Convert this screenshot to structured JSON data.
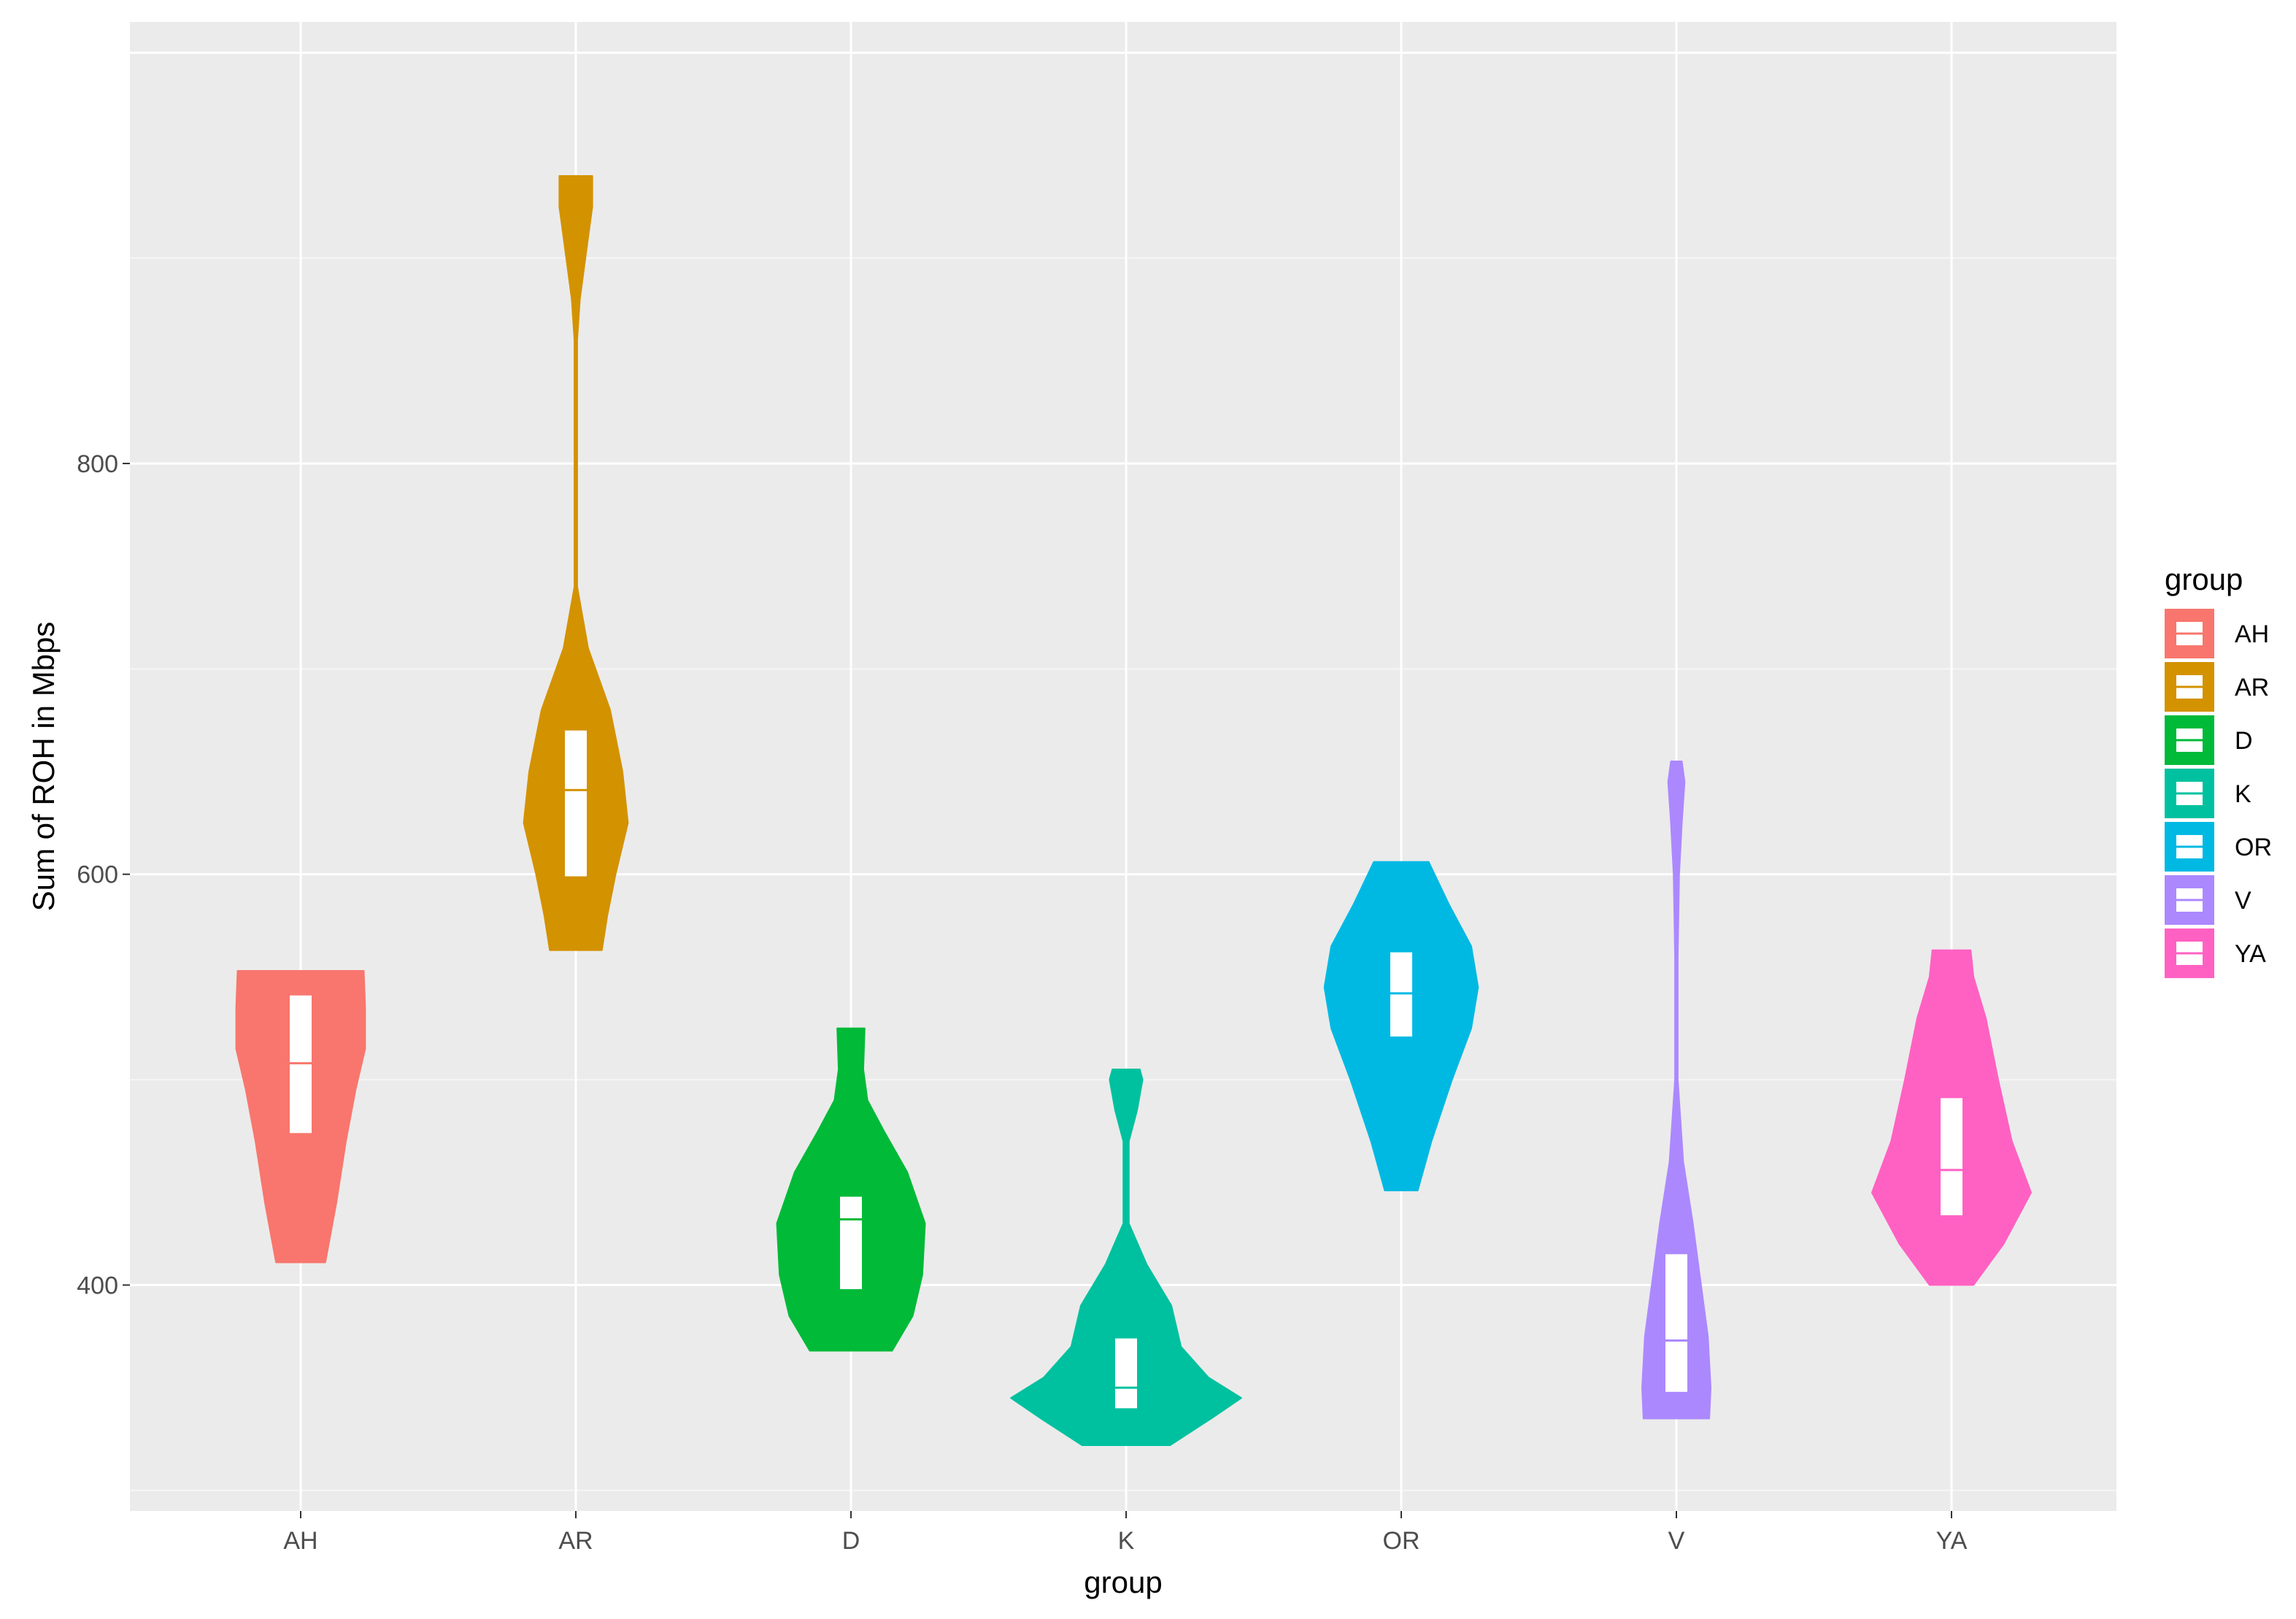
{
  "chart_data": {
    "type": "violin",
    "title": "",
    "xlabel": "group",
    "ylabel": "Sum of ROH in Mbps",
    "ylim": [
      290,
      1015
    ],
    "yticks": [
      400,
      600,
      800
    ],
    "grid": true,
    "legend": {
      "title": "group",
      "position": "right"
    },
    "categories": [
      "AH",
      "AR",
      "D",
      "K",
      "OR",
      "V",
      "YA"
    ],
    "colors": {
      "AH": "#F8766D",
      "AR": "#D39200",
      "D": "#00BA38",
      "K": "#00C19F",
      "OR": "#00B9E3",
      "V": "#AC88FF",
      "YA": "#FF61C3"
    },
    "series": [
      {
        "name": "AH",
        "min": 411,
        "max": 553,
        "q1": 474,
        "median": 508,
        "q3": 541,
        "profile": [
          [
            411,
            0.18
          ],
          [
            440,
            0.26
          ],
          [
            470,
            0.33
          ],
          [
            495,
            0.4
          ],
          [
            515,
            0.47
          ],
          [
            535,
            0.47
          ],
          [
            553,
            0.46
          ]
        ]
      },
      {
        "name": "AR",
        "min": 563,
        "max": 940,
        "q1": 599,
        "median": 641,
        "q3": 670,
        "profile": [
          [
            563,
            0.19
          ],
          [
            580,
            0.23
          ],
          [
            600,
            0.29
          ],
          [
            625,
            0.38
          ],
          [
            650,
            0.34
          ],
          [
            680,
            0.25
          ],
          [
            710,
            0.09
          ],
          [
            740,
            0.01
          ],
          [
            800,
            0.01
          ],
          [
            860,
            0.01
          ],
          [
            880,
            0.03
          ],
          [
            905,
            0.08
          ],
          [
            925,
            0.12
          ],
          [
            940,
            0.12
          ]
        ]
      },
      {
        "name": "D",
        "min": 368,
        "max": 525,
        "q1": 398,
        "median": 432,
        "q3": 443,
        "profile": [
          [
            368,
            0.3
          ],
          [
            385,
            0.45
          ],
          [
            405,
            0.52
          ],
          [
            430,
            0.54
          ],
          [
            455,
            0.41
          ],
          [
            475,
            0.24
          ],
          [
            490,
            0.12
          ],
          [
            505,
            0.09
          ],
          [
            525,
            0.1
          ]
        ]
      },
      {
        "name": "K",
        "min": 322,
        "max": 505,
        "q1": 340,
        "median": 350,
        "q3": 374,
        "profile": [
          [
            322,
            0.32
          ],
          [
            335,
            0.62
          ],
          [
            345,
            0.84
          ],
          [
            355,
            0.6
          ],
          [
            370,
            0.4
          ],
          [
            390,
            0.33
          ],
          [
            410,
            0.15
          ],
          [
            430,
            0.02
          ],
          [
            470,
            0.02
          ],
          [
            485,
            0.08
          ],
          [
            500,
            0.12
          ],
          [
            505,
            0.1
          ]
        ]
      },
      {
        "name": "OR",
        "min": 446,
        "max": 606,
        "q1": 521,
        "median": 542,
        "q3": 562,
        "profile": [
          [
            446,
            0.12
          ],
          [
            470,
            0.22
          ],
          [
            500,
            0.37
          ],
          [
            525,
            0.51
          ],
          [
            545,
            0.56
          ],
          [
            565,
            0.51
          ],
          [
            585,
            0.35
          ],
          [
            606,
            0.2
          ]
        ]
      },
      {
        "name": "V",
        "min": 335,
        "max": 655,
        "q1": 348,
        "median": 373,
        "q3": 415,
        "profile": [
          [
            335,
            0.24
          ],
          [
            350,
            0.25
          ],
          [
            375,
            0.23
          ],
          [
            400,
            0.18
          ],
          [
            430,
            0.12
          ],
          [
            460,
            0.05
          ],
          [
            500,
            0.01
          ],
          [
            560,
            0.01
          ],
          [
            600,
            0.02
          ],
          [
            625,
            0.04
          ],
          [
            645,
            0.06
          ],
          [
            655,
            0.04
          ]
        ]
      },
      {
        "name": "YA",
        "min": 400,
        "max": 563,
        "q1": 434,
        "median": 456,
        "q3": 491,
        "profile": [
          [
            400,
            0.16
          ],
          [
            420,
            0.38
          ],
          [
            445,
            0.58
          ],
          [
            470,
            0.44
          ],
          [
            500,
            0.34
          ],
          [
            530,
            0.25
          ],
          [
            550,
            0.16
          ],
          [
            563,
            0.14
          ]
        ]
      }
    ]
  }
}
